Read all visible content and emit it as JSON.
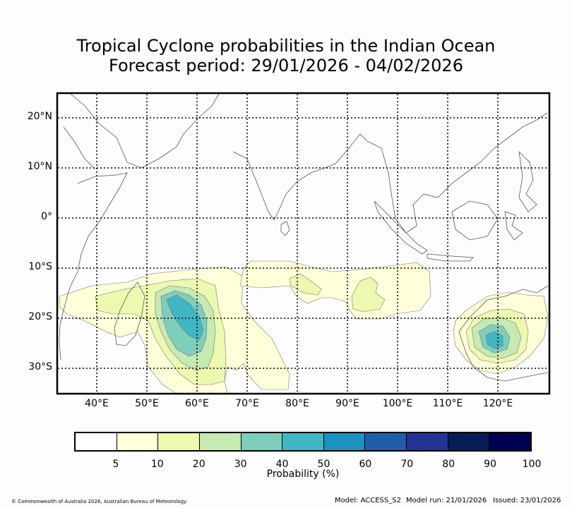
{
  "title": {
    "line1": "Tropical Cyclone probabilities in the Indian Ocean",
    "line2": "Forecast period: 29/01/2026 - 04/02/2026"
  },
  "map": {
    "lat_labels": [
      "20°N",
      "10°N",
      "0°",
      "10°S",
      "20°S",
      "30°S"
    ],
    "lon_labels": [
      "40°E",
      "50°E",
      "60°E",
      "70°E",
      "80°E",
      "90°E",
      "100°E",
      "110°E",
      "120°E"
    ],
    "colors": {
      "coast": "#555555",
      "grid": "#000000",
      "c5": "#ffffd9",
      "c10": "#edf8b1",
      "c20": "#c7e9b4",
      "c30": "#7fcdbb",
      "c40": "#41b6c4",
      "c50": "#1d91c0"
    }
  },
  "colorbar": {
    "colors": [
      "#ffffff",
      "#ffffd9",
      "#edf8b1",
      "#c7e9b4",
      "#7fcdbb",
      "#41b6c4",
      "#1d91c0",
      "#225ea8",
      "#253494",
      "#081d58",
      "#000050"
    ],
    "ticks": [
      "5",
      "10",
      "20",
      "30",
      "40",
      "50",
      "60",
      "70",
      "80",
      "90",
      "100"
    ],
    "label": "Probability (%)"
  },
  "footer": {
    "copyright": "© Commonwealth of Australia 2026, Australian Bureau of Meteorology",
    "model": "Model: ACCESS_S2",
    "model_run": "Model run: 21/01/2026",
    "issued": "Issued: 23/01/2026"
  }
}
